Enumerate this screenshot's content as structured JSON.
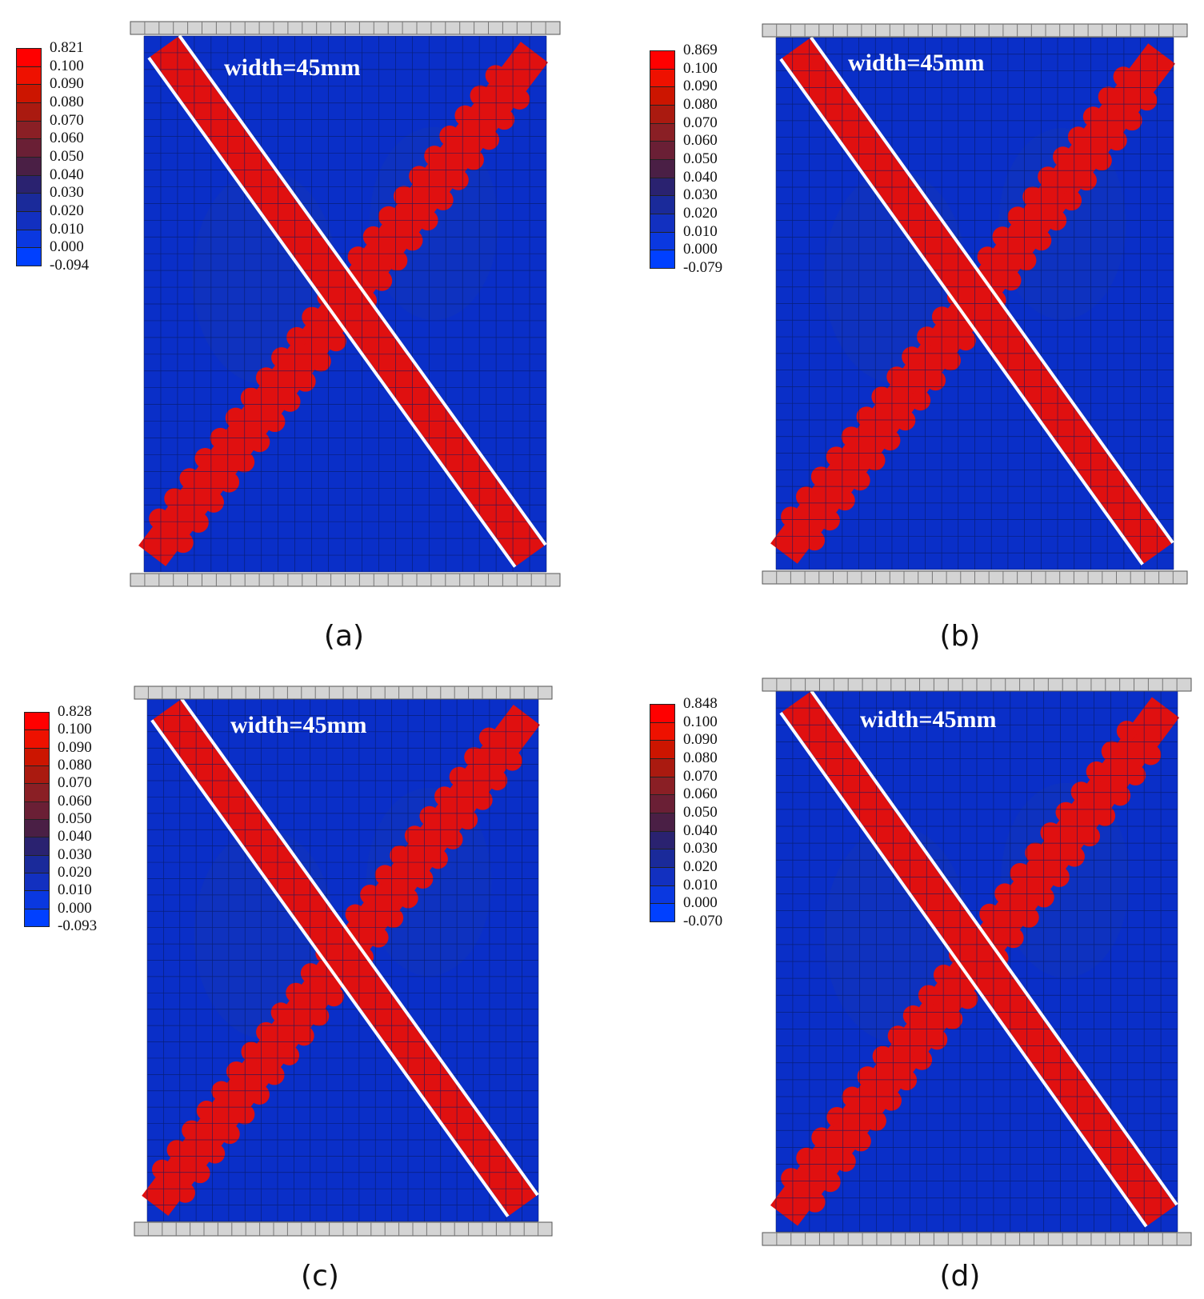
{
  "panels": [
    {
      "id": "a",
      "caption": "(a)",
      "width_label": "width=45mm",
      "legend": [
        "0.821",
        "0.100",
        "0.090",
        "0.080",
        "0.070",
        "0.060",
        "0.050",
        "0.040",
        "0.030",
        "0.020",
        "0.010",
        "0.000",
        "-0.094"
      ]
    },
    {
      "id": "b",
      "caption": "(b)",
      "width_label": "width=45mm",
      "legend": [
        "0.869",
        "0.100",
        "0.090",
        "0.080",
        "0.070",
        "0.060",
        "0.050",
        "0.040",
        "0.030",
        "0.020",
        "0.010",
        "0.000",
        "-0.079"
      ]
    },
    {
      "id": "c",
      "caption": "(c)",
      "width_label": "width=45mm",
      "legend": [
        "0.828",
        "0.100",
        "0.090",
        "0.080",
        "0.070",
        "0.060",
        "0.050",
        "0.040",
        "0.030",
        "0.020",
        "0.010",
        "0.000",
        "-0.093"
      ]
    },
    {
      "id": "d",
      "caption": "(d)",
      "width_label": "width=45mm",
      "legend": [
        "0.848",
        "0.100",
        "0.090",
        "0.080",
        "0.070",
        "0.060",
        "0.050",
        "0.040",
        "0.030",
        "0.020",
        "0.010",
        "0.000",
        "-0.070"
      ]
    }
  ],
  "legend_colors": [
    "#ff0000",
    "#ee1100",
    "#cc1500",
    "#aa1a10",
    "#8a1f25",
    "#6a1f35",
    "#4a1f45",
    "#2a2270",
    "#1a2a9a",
    "#1230c0",
    "#0a38e0",
    "#0040ff"
  ],
  "colors": {
    "background": "#0a2fc8",
    "band": "#e01010",
    "plate": "#d4d4d4",
    "crack": "#ffffff"
  }
}
